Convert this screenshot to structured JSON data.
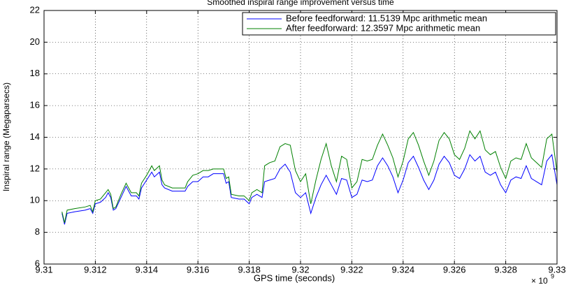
{
  "chart_data": {
    "type": "line",
    "title": "Smoothed inspiral range improvement versus time",
    "xlabel": "GPS time (seconds)",
    "ylabel": "Inspiral range (Megaparsecs)",
    "x_multiplier": "× 10",
    "x_multiplier_exponent": "9",
    "xlim": [
      9.31,
      9.33
    ],
    "xticks": [
      9.31,
      9.312,
      9.314,
      9.316,
      9.318,
      9.32,
      9.322,
      9.324,
      9.326,
      9.328,
      9.33
    ],
    "ylim": [
      6,
      22
    ],
    "yticks": [
      6,
      8,
      10,
      12,
      14,
      16,
      18,
      20,
      22
    ],
    "grid": true,
    "legend": "upper right",
    "x": [
      9.3107,
      9.3108,
      9.3109,
      9.3112,
      9.3116,
      9.3118,
      9.3119,
      9.312,
      9.3122,
      9.3124,
      9.3125,
      9.3126,
      9.3127,
      9.3128,
      9.313,
      9.3132,
      9.3133,
      9.3134,
      9.3136,
      9.3137,
      9.3138,
      9.314,
      9.3142,
      9.3143,
      9.3145,
      9.3146,
      9.3147,
      9.315,
      9.3155,
      9.3156,
      9.3158,
      9.316,
      9.3162,
      9.3164,
      9.3166,
      9.3168,
      9.317,
      9.3171,
      9.3172,
      9.3173,
      9.3176,
      9.3178,
      9.318,
      9.3181,
      9.3183,
      9.3185,
      9.3186,
      9.3188,
      9.319,
      9.3192,
      9.3194,
      9.3196,
      9.3198,
      9.32,
      9.3202,
      9.3204,
      9.3206,
      9.3208,
      9.321,
      9.3212,
      9.3214,
      9.3216,
      9.3218,
      9.322,
      9.3222,
      9.3224,
      9.3226,
      9.3228,
      9.323,
      9.3232,
      9.3234,
      9.3236,
      9.3238,
      9.324,
      9.3242,
      9.3244,
      9.3246,
      9.3248,
      9.325,
      9.3252,
      9.3254,
      9.3256,
      9.3258,
      9.326,
      9.3262,
      9.3264,
      9.3266,
      9.3268,
      9.327,
      9.3272,
      9.3274,
      9.3276,
      9.3278,
      9.328,
      9.3282,
      9.3284,
      9.3286,
      9.3288,
      9.329,
      9.3292,
      9.3294,
      9.3296,
      9.3298,
      9.33
    ],
    "series": [
      {
        "name": "Before feedforward: 11.5139 Mpc arithmetic mean",
        "color": "#0000ff",
        "values": [
          9.2,
          8.5,
          9.2,
          9.3,
          9.4,
          9.5,
          9.2,
          9.8,
          9.9,
          10.2,
          10.5,
          10.2,
          9.4,
          9.5,
          10.2,
          10.9,
          10.6,
          10.3,
          10.3,
          10.1,
          10.8,
          11.3,
          11.8,
          11.5,
          11.8,
          11.0,
          10.8,
          10.6,
          10.6,
          10.9,
          11.2,
          11.2,
          11.5,
          11.5,
          11.7,
          11.7,
          11.7,
          11.1,
          11.2,
          10.2,
          10.1,
          10.1,
          9.8,
          10.2,
          10.4,
          10.2,
          11.2,
          11.3,
          11.4,
          12.0,
          12.3,
          11.8,
          10.5,
          10.2,
          10.5,
          9.2,
          10.2,
          11.0,
          11.6,
          11.0,
          10.4,
          11.4,
          11.3,
          10.2,
          10.4,
          11.3,
          11.2,
          11.3,
          12.2,
          12.7,
          12.2,
          11.5,
          10.5,
          11.3,
          12.4,
          12.8,
          12.1,
          11.3,
          10.7,
          11.3,
          12.3,
          12.8,
          12.4,
          11.6,
          11.4,
          12.0,
          12.9,
          12.5,
          12.8,
          11.8,
          11.6,
          11.8,
          11.0,
          10.5,
          11.3,
          11.5,
          11.4,
          12.2,
          11.4,
          11.2,
          11.0,
          12.5,
          12.9,
          11.0
        ]
      },
      {
        "name": "After feedforward: 12.3597 Mpc arithmetic mean",
        "color": "#008000",
        "values": [
          9.3,
          8.6,
          9.4,
          9.5,
          9.6,
          9.7,
          9.3,
          10.0,
          10.1,
          10.5,
          10.7,
          10.4,
          9.5,
          9.6,
          10.4,
          11.1,
          10.8,
          10.5,
          10.5,
          10.3,
          11.1,
          11.6,
          12.2,
          11.9,
          12.2,
          11.3,
          11.0,
          10.8,
          10.8,
          11.2,
          11.6,
          11.7,
          11.9,
          11.9,
          12.0,
          12.0,
          12.0,
          11.4,
          11.5,
          10.4,
          10.3,
          10.3,
          10.0,
          10.5,
          10.7,
          10.5,
          12.2,
          12.4,
          12.5,
          13.4,
          13.6,
          13.5,
          11.9,
          11.2,
          11.7,
          9.8,
          11.3,
          12.6,
          13.6,
          12.2,
          11.2,
          12.8,
          12.6,
          10.8,
          11.2,
          12.6,
          12.5,
          12.6,
          13.5,
          14.2,
          13.5,
          12.7,
          11.5,
          12.5,
          13.9,
          14.3,
          13.5,
          12.5,
          11.6,
          12.5,
          13.8,
          14.3,
          13.9,
          12.9,
          12.6,
          13.3,
          14.4,
          13.9,
          14.4,
          13.2,
          12.9,
          13.1,
          12.1,
          11.4,
          12.5,
          12.7,
          12.6,
          13.6,
          12.7,
          12.4,
          12.1,
          13.9,
          14.2,
          11.8
        ]
      }
    ]
  }
}
